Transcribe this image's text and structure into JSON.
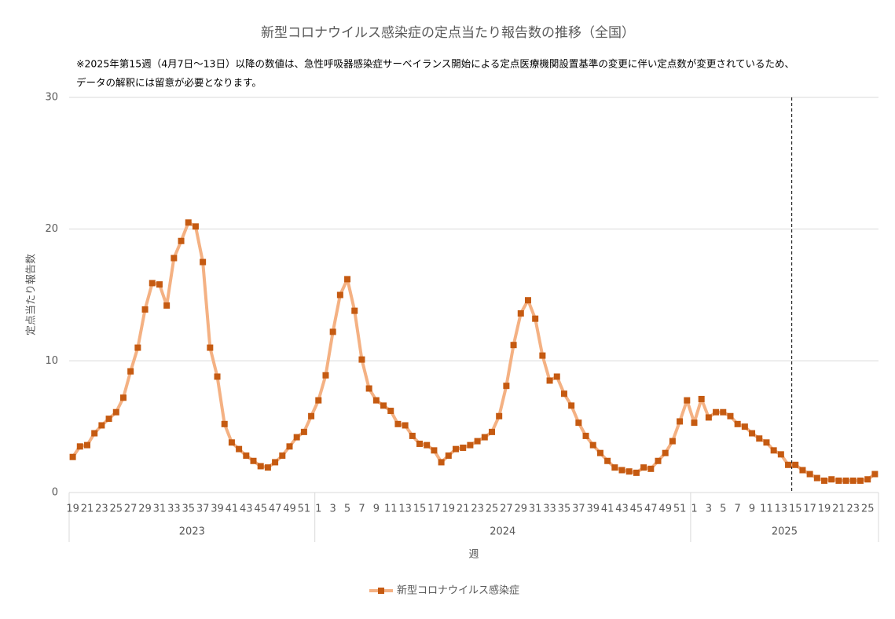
{
  "chart_data": {
    "type": "line",
    "title": "新型コロナウイルス感染症の定点当たり報告数の推移（全国）",
    "note": [
      "※2025年第15週（4月7日～13日）以降の数値は、急性呼吸器感染症サーベイランス開始による定点医療機関設置基準の変更に伴い定点数が変更されているため、",
      "データの解釈には留意が必要となります。"
    ],
    "y_label": "定点当たり報告数",
    "x_label": "週",
    "groups": [
      {
        "label": "2023",
        "categories": [
          19,
          null,
          21,
          null,
          23,
          null,
          25,
          null,
          27,
          null,
          29,
          null,
          31,
          null,
          33,
          null,
          35,
          null,
          37,
          null,
          39,
          null,
          41,
          null,
          43,
          null,
          45,
          null,
          47,
          null,
          49,
          null,
          51,
          null
        ]
      },
      {
        "label": "2024",
        "categories": [
          1,
          null,
          3,
          null,
          5,
          null,
          7,
          null,
          9,
          null,
          11,
          null,
          13,
          null,
          15,
          null,
          17,
          null,
          19,
          null,
          21,
          null,
          23,
          null,
          25,
          null,
          27,
          null,
          29,
          null,
          31,
          null,
          33,
          null,
          35,
          null,
          37,
          null,
          39,
          null,
          41,
          null,
          43,
          null,
          45,
          null,
          47,
          null,
          49,
          null,
          51,
          null
        ]
      },
      {
        "label": "2025",
        "categories": [
          1,
          null,
          3,
          null,
          5,
          null,
          7,
          null,
          9,
          null,
          11,
          null,
          13,
          null,
          15,
          null,
          17,
          null,
          19,
          null,
          21,
          null,
          23,
          null,
          25,
          null
        ]
      }
    ],
    "series": [
      {
        "name": "新型コロナウイルス感染症",
        "color": "#f4b183",
        "marker_color": "#c55a11",
        "values": [
          2.7,
          3.5,
          3.6,
          4.5,
          5.1,
          5.6,
          6.1,
          7.2,
          9.2,
          11.0,
          13.9,
          15.9,
          15.8,
          14.2,
          17.8,
          19.1,
          20.5,
          20.2,
          17.5,
          11.0,
          8.8,
          5.2,
          3.8,
          3.3,
          2.8,
          2.4,
          2.0,
          1.9,
          2.3,
          2.8,
          3.5,
          4.2,
          4.6,
          5.8,
          7.0,
          8.9,
          12.2,
          15.0,
          16.2,
          13.8,
          10.1,
          7.9,
          7.0,
          6.6,
          6.2,
          5.2,
          5.1,
          4.3,
          3.7,
          3.6,
          3.2,
          2.3,
          2.8,
          3.3,
          3.4,
          3.6,
          3.9,
          4.2,
          4.6,
          5.8,
          8.1,
          11.2,
          13.6,
          14.6,
          13.2,
          10.4,
          8.5,
          8.8,
          7.5,
          6.6,
          5.3,
          4.3,
          3.6,
          3.0,
          2.4,
          1.9,
          1.7,
          1.6,
          1.5,
          1.9,
          1.8,
          2.4,
          3.0,
          3.9,
          5.4,
          7.0,
          5.3,
          7.1,
          5.7,
          6.1,
          6.1,
          5.8,
          5.2,
          5.0,
          4.5,
          4.1,
          3.8,
          3.2,
          2.9,
          2.1,
          2.1,
          1.7,
          1.4,
          1.1,
          0.9,
          1.0,
          0.9,
          0.9,
          0.9,
          0.9,
          1.0,
          1.4
        ]
      }
    ],
    "ylim": [
      0,
      30
    ],
    "yticks": [
      0,
      10,
      20,
      30
    ],
    "grid": true,
    "legend": "bottom"
  }
}
